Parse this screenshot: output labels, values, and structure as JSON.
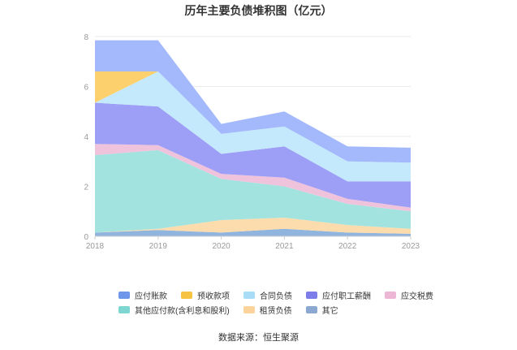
{
  "title": "历年主要负债堆积图（亿元）",
  "source": "数据来源：恒生聚源",
  "chart_data": {
    "type": "area",
    "stacked": true,
    "x": [
      "2018",
      "2019",
      "2020",
      "2021",
      "2022",
      "2023"
    ],
    "ylim": [
      0,
      8
    ],
    "yticks": [
      0,
      2,
      4,
      6,
      8
    ],
    "grid": true,
    "legend_position": "bottom",
    "series": [
      {
        "name": "其它",
        "color": "#8fb4de",
        "values": [
          0.15,
          0.25,
          0.15,
          0.3,
          0.15,
          0.1
        ]
      },
      {
        "name": "租赁负债",
        "color": "#fcdcad",
        "values": [
          0.0,
          0.05,
          0.5,
          0.45,
          0.3,
          0.2
        ]
      },
      {
        "name": "其他应付款(含利息和股利)",
        "color": "#a2e3df",
        "values": [
          3.1,
          3.15,
          1.65,
          1.25,
          0.85,
          0.7
        ]
      },
      {
        "name": "应交税费",
        "color": "#f0c3dd",
        "values": [
          0.45,
          0.2,
          0.2,
          0.35,
          0.2,
          0.15
        ]
      },
      {
        "name": "应付职工薪酬",
        "color": "#9d9ef6",
        "values": [
          1.65,
          1.55,
          0.8,
          1.25,
          0.7,
          1.05
        ]
      },
      {
        "name": "合同负债",
        "color": "#c4e8fc",
        "values": [
          0.0,
          1.4,
          0.8,
          0.8,
          0.8,
          0.75
        ]
      },
      {
        "name": "预收款项",
        "color": "#fbd06d",
        "values": [
          1.25,
          0.0,
          0.0,
          0.0,
          0.0,
          0.0
        ]
      },
      {
        "name": "应付账款",
        "color": "#a4b9fc",
        "values": [
          1.25,
          1.25,
          0.4,
          0.6,
          0.6,
          0.6
        ]
      }
    ],
    "legend": [
      {
        "name": "应付账款",
        "color": "#6e96ea"
      },
      {
        "name": "预收款项",
        "color": "#f7c342"
      },
      {
        "name": "合同负债",
        "color": "#a8dcf7"
      },
      {
        "name": "应付职工薪酬",
        "color": "#7c7de8"
      },
      {
        "name": "应交税费",
        "color": "#ecb6d4"
      },
      {
        "name": "其他应付款(含利息和股利)",
        "color": "#7ed6d0"
      },
      {
        "name": "租赁负债",
        "color": "#fcd49b"
      },
      {
        "name": "其它",
        "color": "#8aa8d2"
      }
    ]
  }
}
